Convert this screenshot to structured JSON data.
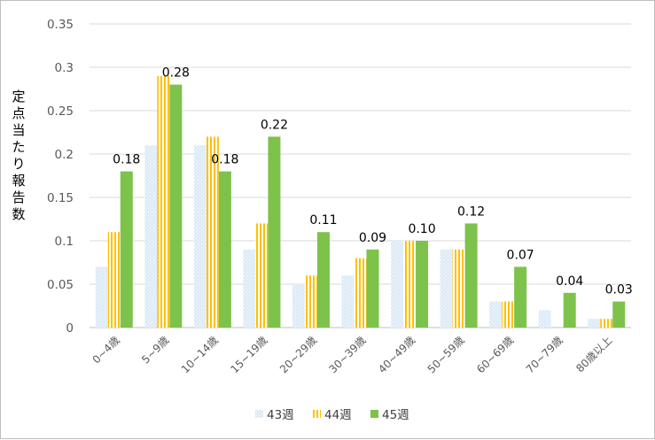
{
  "chart_data": {
    "type": "bar",
    "ylabel": "定点当たり報告数",
    "ylim": [
      0,
      0.35
    ],
    "yticks": [
      "0",
      "0.05",
      "0.1",
      "0.15",
      "0.2",
      "0.25",
      "0.3",
      "0.35"
    ],
    "ytick_values": [
      0,
      0.05,
      0.1,
      0.15,
      0.2,
      0.25,
      0.3,
      0.35
    ],
    "grid": true,
    "legend_position": "bottom",
    "categories": [
      "0~4歳",
      "5~9歳",
      "10~14歳",
      "15~19歳",
      "20~29歳",
      "30~39歳",
      "40~49歳",
      "50~59歳",
      "60~69歳",
      "70~79歳",
      "80歳以上"
    ],
    "series": [
      {
        "name": "43週",
        "color": "#deebf7",
        "pattern": "light-dots",
        "values": [
          0.07,
          0.21,
          0.21,
          0.09,
          0.05,
          0.06,
          0.1,
          0.09,
          0.03,
          0.02,
          0.01
        ]
      },
      {
        "name": "44週",
        "color": "#ffc000",
        "pattern": "vertical-stripes",
        "values": [
          0.11,
          0.29,
          0.22,
          0.12,
          0.06,
          0.08,
          0.1,
          0.09,
          0.03,
          0.0,
          0.01
        ]
      },
      {
        "name": "45週",
        "color": "#7dc24b",
        "pattern": "solid",
        "values": [
          0.18,
          0.28,
          0.18,
          0.22,
          0.11,
          0.09,
          0.1,
          0.12,
          0.07,
          0.04,
          0.03
        ]
      }
    ],
    "data_labels": {
      "series": "45週",
      "labels": [
        "0.18",
        "0.28",
        "0.18",
        "0.22",
        "0.11",
        "0.09",
        "0.10",
        "0.12",
        "0.07",
        "0.04",
        "0.03"
      ]
    }
  }
}
